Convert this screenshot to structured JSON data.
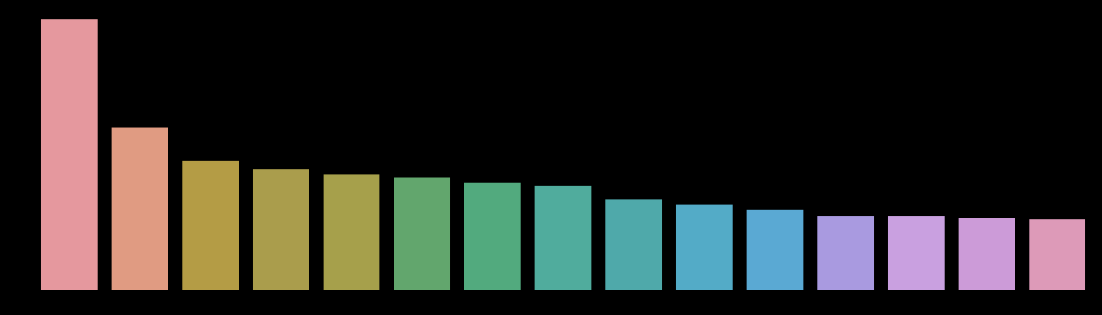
{
  "chart_data": {
    "type": "bar",
    "title": "",
    "xlabel": "",
    "ylabel": "",
    "ylim": [
      0,
      340
    ],
    "categories": [
      "",
      "",
      "",
      "",
      "",
      "",
      "",
      "",
      "",
      "",
      "",
      "",
      "",
      "",
      ""
    ],
    "values": [
      334,
      200,
      159,
      149,
      142,
      139,
      132,
      128,
      112,
      105,
      99,
      91,
      91,
      89,
      87
    ],
    "colors": [
      "#e5989e",
      "#e09b82",
      "#b49c45",
      "#aa9d4c",
      "#a6a04b",
      "#62a66d",
      "#52aa7e",
      "#50ac9d",
      "#4fa9aa",
      "#53abc7",
      "#5aa9d3",
      "#a99ae0",
      "#c9a0e0",
      "#cc9bd8",
      "#dd9ab8"
    ],
    "grid": false,
    "legend": "none",
    "background": "#000000"
  }
}
